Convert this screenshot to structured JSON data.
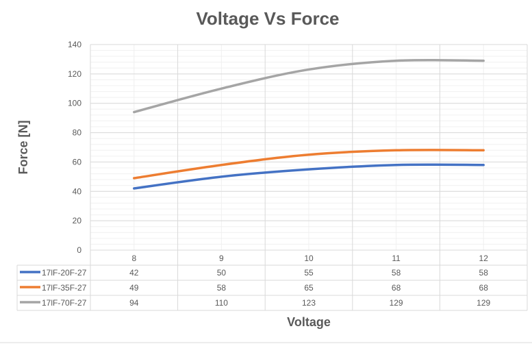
{
  "chart_data": {
    "type": "line",
    "title": "Voltage Vs Force",
    "xlabel": "Voltage",
    "ylabel": "Force [N]",
    "categories": [
      "8",
      "9",
      "10",
      "11",
      "12"
    ],
    "ylim": [
      0,
      140
    ],
    "yticks": [
      0,
      20,
      40,
      60,
      80,
      100,
      120,
      140
    ],
    "grid": true,
    "legend": "data-table",
    "series": [
      {
        "name": "17lF-20F-27",
        "color": "#4472C4",
        "values": [
          42,
          50,
          55,
          58,
          58
        ]
      },
      {
        "name": "17lF-35F-27",
        "color": "#ED7D31",
        "values": [
          49,
          58,
          65,
          68,
          68
        ]
      },
      {
        "name": "17lF-70F-27",
        "color": "#A5A5A5",
        "values": [
          94,
          110,
          123,
          129,
          129
        ]
      }
    ]
  }
}
